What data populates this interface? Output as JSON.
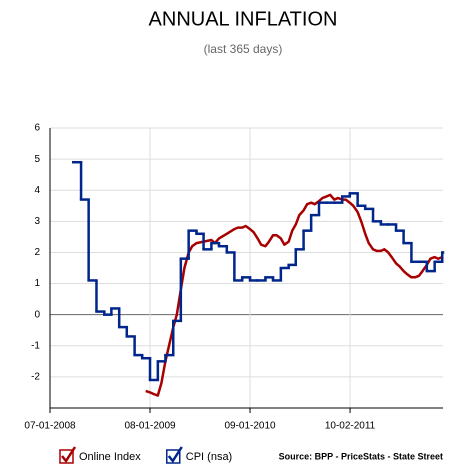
{
  "chart_data": {
    "type": "line",
    "title": "ANNUAL INFLATION",
    "subtitle": "(last 365 days)",
    "source": "Source: BPP - PriceStats - State Street",
    "ylim": [
      -3,
      6
    ],
    "yticks": [
      -2,
      -1,
      0,
      1,
      2,
      3,
      4,
      5,
      6
    ],
    "xlim": [
      "07-01-2008",
      "10-04-2012"
    ],
    "xticks": [
      "07-01-2008",
      "08-01-2009",
      "09-01-2010",
      "10-02-2011"
    ],
    "grid": true,
    "legend": "bottom-left",
    "series": [
      {
        "name": "Online Index",
        "color": "#a80000",
        "style": "line",
        "x": [
          "07-15-2009",
          "08-01-2009",
          "08-15-2009",
          "09-01-2009",
          "09-15-2009",
          "10-01-2009",
          "10-15-2009",
          "11-01-2009",
          "11-15-2009",
          "12-01-2009",
          "12-15-2009",
          "01-01-2010",
          "01-15-2010",
          "02-01-2010",
          "03-01-2010",
          "04-01-2010",
          "04-15-2010",
          "05-01-2010",
          "06-01-2010",
          "07-01-2010",
          "07-15-2010",
          "08-01-2010",
          "08-15-2010",
          "09-01-2010",
          "09-15-2010",
          "10-01-2010",
          "10-15-2010",
          "11-01-2010",
          "11-15-2010",
          "12-01-2010",
          "12-15-2010",
          "01-01-2011",
          "01-15-2011",
          "02-01-2011",
          "02-15-2011",
          "03-01-2011",
          "03-15-2011",
          "04-01-2011",
          "04-15-2011",
          "05-01-2011",
          "05-15-2011",
          "06-01-2011",
          "06-15-2011",
          "07-01-2011",
          "07-15-2011",
          "08-01-2011",
          "08-15-2011",
          "09-01-2011",
          "09-15-2011",
          "10-01-2011",
          "10-15-2011",
          "11-01-2011",
          "11-15-2011",
          "12-01-2011",
          "12-15-2011",
          "01-01-2012",
          "01-15-2012",
          "02-01-2012",
          "02-15-2012",
          "03-01-2012",
          "03-15-2012",
          "04-01-2012",
          "04-15-2012",
          "05-01-2012",
          "05-15-2012",
          "06-01-2012",
          "06-15-2012",
          "07-01-2012",
          "07-15-2012",
          "08-01-2012",
          "08-15-2012",
          "09-01-2012",
          "09-15-2012",
          "10-01-2012"
        ],
        "values": [
          -2.45,
          -2.5,
          -2.55,
          -2.6,
          -2.2,
          -1.5,
          -1.0,
          -0.4,
          0,
          0.8,
          1.5,
          2.0,
          2.2,
          2.3,
          2.35,
          2.4,
          2.3,
          2.45,
          2.6,
          2.75,
          2.8,
          2.8,
          2.85,
          2.75,
          2.65,
          2.45,
          2.25,
          2.2,
          2.35,
          2.55,
          2.55,
          2.45,
          2.25,
          2.35,
          2.7,
          2.9,
          3.2,
          3.35,
          3.55,
          3.6,
          3.55,
          3.65,
          3.75,
          3.8,
          3.85,
          3.7,
          3.75,
          3.7,
          3.7,
          3.6,
          3.5,
          3.3,
          3.0,
          2.6,
          2.3,
          2.1,
          2.05,
          2.05,
          2.1,
          2.0,
          1.85,
          1.65,
          1.55,
          1.4,
          1.3,
          1.2,
          1.2,
          1.25,
          1.4,
          1.6,
          1.8,
          1.85,
          1.8,
          1.85
        ]
      },
      {
        "name": "CPI (nsa)",
        "color": "#00268c",
        "style": "step",
        "x": [
          "10-01-2008",
          "11-01-2008",
          "12-01-2008",
          "01-01-2009",
          "02-01-2009",
          "03-01-2009",
          "04-01-2009",
          "05-01-2009",
          "06-01-2009",
          "07-01-2009",
          "08-01-2009",
          "09-01-2009",
          "10-01-2009",
          "11-01-2009",
          "12-01-2009",
          "01-01-2010",
          "02-01-2010",
          "03-01-2010",
          "04-01-2010",
          "05-01-2010",
          "06-01-2010",
          "07-01-2010",
          "08-01-2010",
          "09-01-2010",
          "10-01-2010",
          "11-01-2010",
          "12-01-2010",
          "01-01-2011",
          "02-01-2011",
          "03-01-2011",
          "04-01-2011",
          "05-01-2011",
          "06-01-2011",
          "07-01-2011",
          "08-01-2011",
          "09-01-2011",
          "10-01-2011",
          "11-01-2011",
          "12-01-2011",
          "01-01-2012",
          "02-01-2012",
          "03-01-2012",
          "04-01-2012",
          "05-01-2012",
          "06-01-2012",
          "07-01-2012",
          "08-01-2012",
          "09-01-2012",
          "10-01-2012"
        ],
        "values": [
          4.9,
          3.7,
          1.1,
          0.1,
          0.0,
          0.2,
          -0.4,
          -0.7,
          -1.3,
          -1.4,
          -2.1,
          -1.5,
          -1.3,
          -0.2,
          1.8,
          2.7,
          2.6,
          2.1,
          2.3,
          2.2,
          2.0,
          1.1,
          1.2,
          1.1,
          1.1,
          1.2,
          1.1,
          1.5,
          1.6,
          2.1,
          2.7,
          3.2,
          3.6,
          3.6,
          3.6,
          3.8,
          3.9,
          3.5,
          3.4,
          3.0,
          2.9,
          2.9,
          2.7,
          2.3,
          1.7,
          1.7,
          1.4,
          1.7,
          2.0
        ]
      }
    ]
  }
}
